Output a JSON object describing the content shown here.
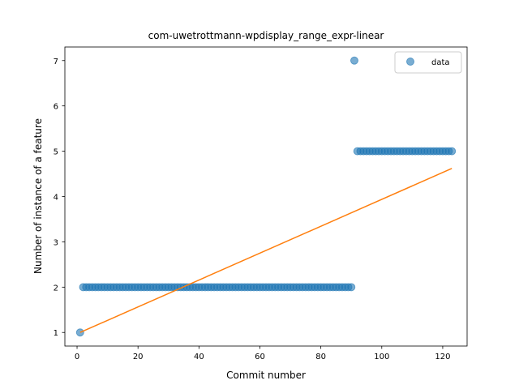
{
  "chart_data": {
    "type": "scatter",
    "title": "com-uwetrottmann-wpdisplay_range_expr-linear",
    "xlabel": "Commit number",
    "ylabel": "Number of instance of a feature",
    "xlim": [
      -4,
      128
    ],
    "ylim": [
      0.7,
      7.3
    ],
    "xticks": [
      0,
      20,
      40,
      60,
      80,
      100,
      120
    ],
    "yticks": [
      1,
      2,
      3,
      4,
      5,
      6,
      7
    ],
    "grid": false,
    "legend_position": "top-right",
    "colors": {
      "scatter": "#1f77b4",
      "fit": "#ff7f0e"
    },
    "series": [
      {
        "name": "data",
        "kind": "scatter",
        "segments": [
          {
            "x_start": 1,
            "x_end": 1,
            "y": 1
          },
          {
            "x_start": 2,
            "x_end": 90,
            "y": 2
          },
          {
            "x_start": 91,
            "x_end": 91,
            "y": 7
          },
          {
            "x_start": 92,
            "x_end": 123,
            "y": 5
          }
        ]
      },
      {
        "kind": "line",
        "x": [
          1,
          123
        ],
        "y": [
          1.0,
          4.62
        ]
      }
    ]
  }
}
